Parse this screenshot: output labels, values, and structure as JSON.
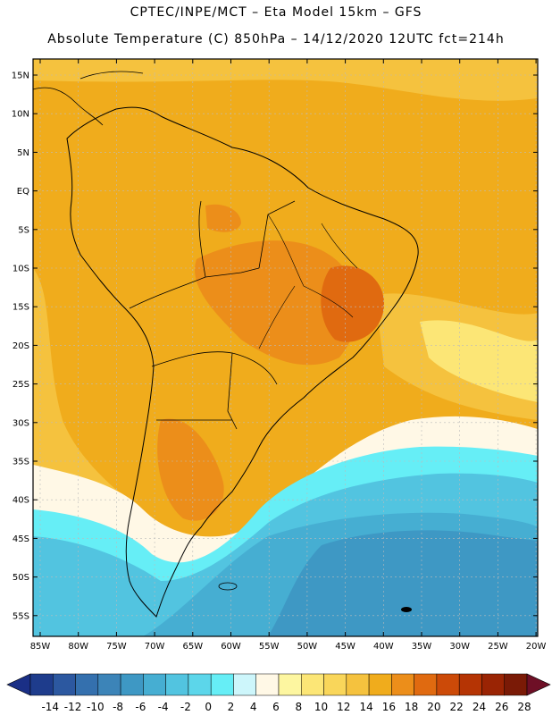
{
  "header": {
    "line1": "CPTEC/INPE/MCT –  Eta Model 15km – GFS",
    "line2": "Absolute Temperature (C) 850hPa – 14/12/2020 12UTC fct=214h"
  },
  "lat_labels": [
    "15N",
    "10N",
    "5N",
    "EQ",
    "5S",
    "10S",
    "15S",
    "20S",
    "25S",
    "30S",
    "35S",
    "40S",
    "45S",
    "50S",
    "55S"
  ],
  "lon_labels": [
    "85W",
    "80W",
    "75W",
    "70W",
    "65W",
    "60W",
    "55W",
    "50W",
    "45W",
    "40W",
    "35W",
    "30W",
    "25W",
    "20W"
  ],
  "colorbar": {
    "labels": [
      "-14",
      "-12",
      "-10",
      "-8",
      "-6",
      "-4",
      "-2",
      "0",
      "2",
      "4",
      "6",
      "8",
      "10",
      "12",
      "14",
      "16",
      "18",
      "20",
      "22",
      "24",
      "26",
      "28"
    ],
    "colors": [
      "#1e3c8c",
      "#2c58a0",
      "#3470ae",
      "#3c84b8",
      "#3e98c4",
      "#46aed2",
      "#52c4e0",
      "#5cd6ea",
      "#66eef6",
      "#cdf6fb",
      "#fff8e6",
      "#fdf6a0",
      "#fce676",
      "#f9d65a",
      "#f5c23e",
      "#f0ac1c",
      "#ec8e1a",
      "#e06a10",
      "#cc4a08",
      "#b53404",
      "#9a2404",
      "#7a1a06"
    ],
    "left_arrow": "#1a2f86",
    "right_arrow": "#6e0f26"
  },
  "colors": {
    "warm_base": "#f0ac1c",
    "hot": "#ec8e1a",
    "hotter": "#e06a10",
    "mild": "#f5c23e",
    "cool_pale": "#fff8e6",
    "cold": "#52c4e0",
    "cyan": "#66eef6",
    "coast": "#000000",
    "grid": "#bbbbbb"
  }
}
